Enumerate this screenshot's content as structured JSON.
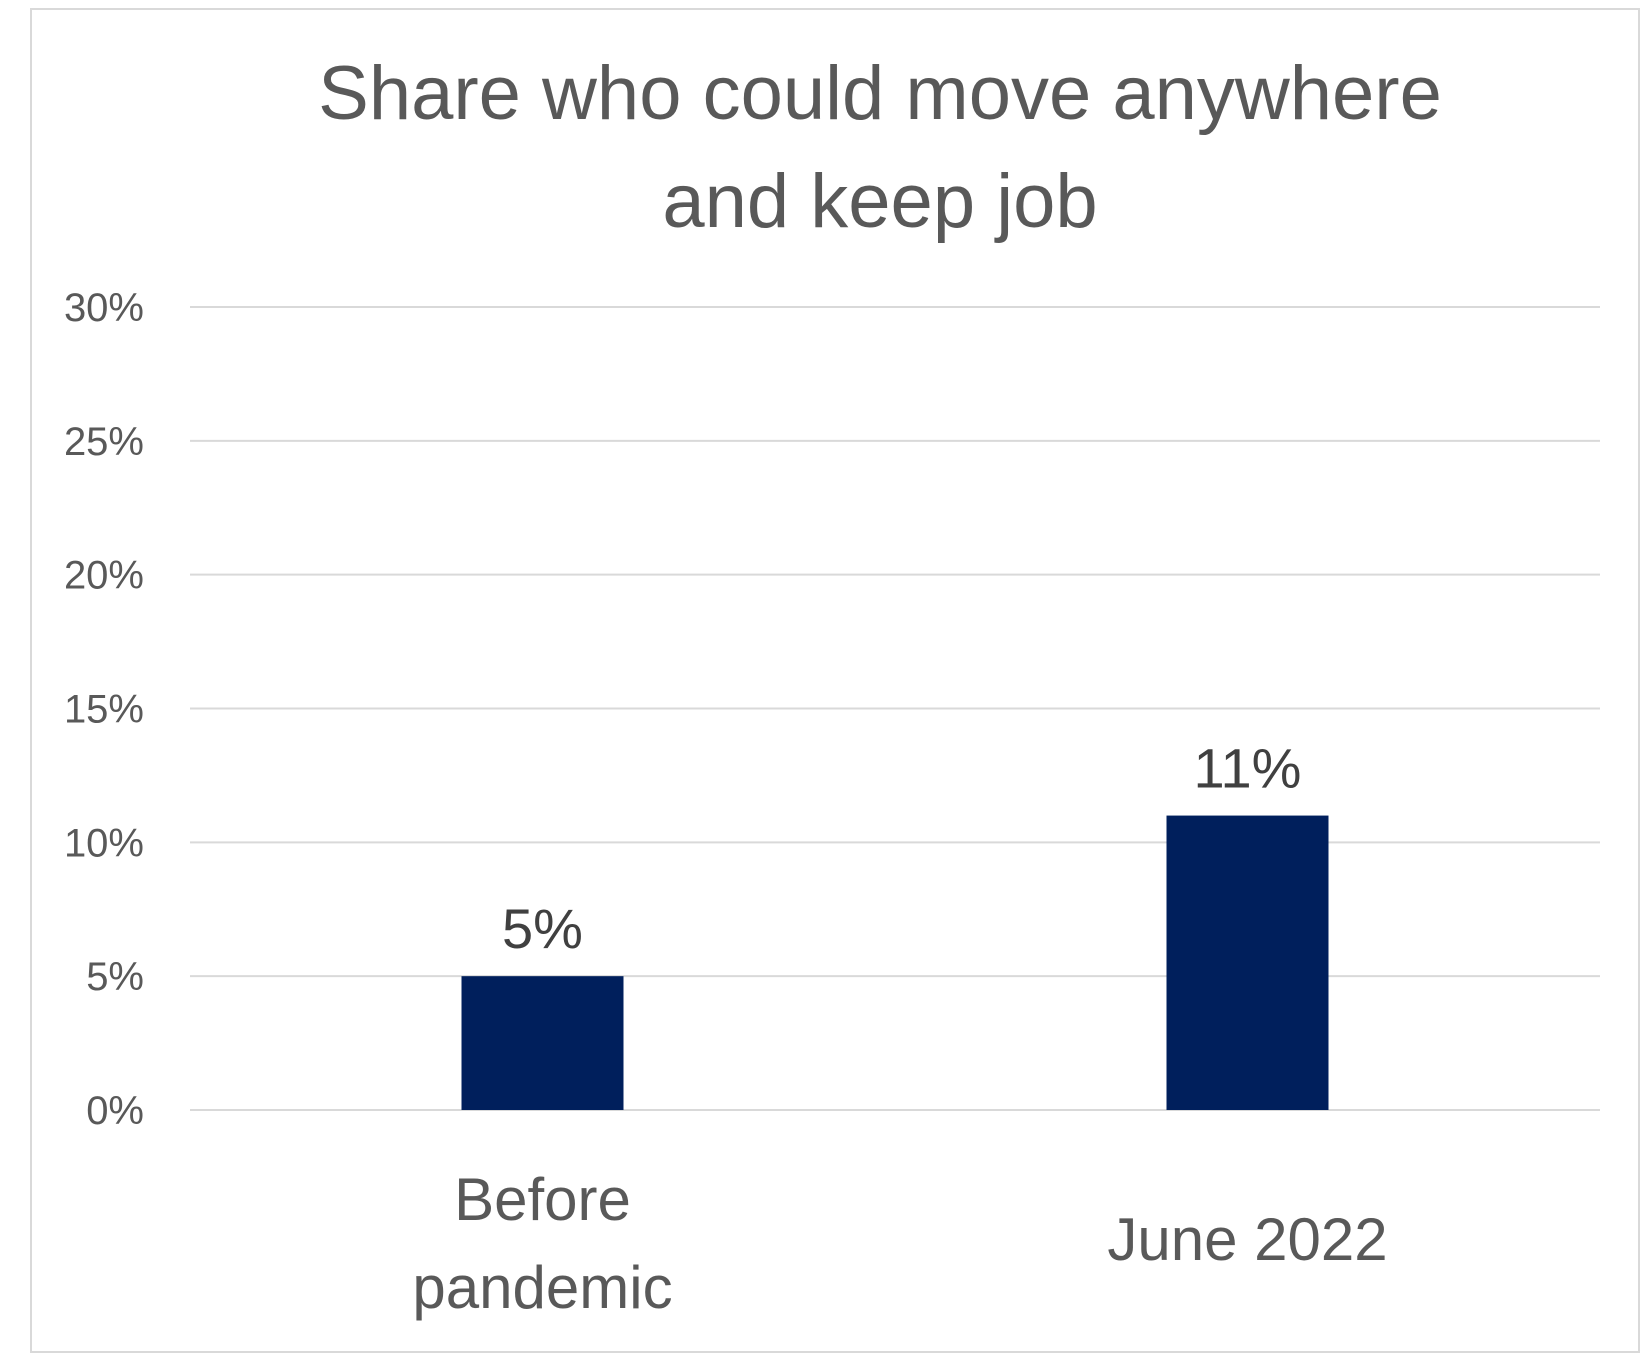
{
  "chart_data": {
    "type": "bar",
    "title": "Share who could move anywhere and keep job",
    "xlabel": "",
    "ylabel": "",
    "categories": [
      [
        "Before",
        "pandemic"
      ],
      [
        "June 2022"
      ]
    ],
    "values": [
      5,
      11
    ],
    "data_labels": [
      "5%",
      "11%"
    ],
    "ylim": [
      0,
      30
    ],
    "y_ticks": [
      0,
      5,
      10,
      15,
      20,
      25,
      30
    ],
    "y_tick_labels": [
      "0%",
      "5%",
      "10%",
      "15%",
      "20%",
      "25%",
      "30%"
    ],
    "grid": true,
    "legend": "none",
    "bar_color": "#001f5c",
    "grid_color": "#d9d9d9"
  }
}
